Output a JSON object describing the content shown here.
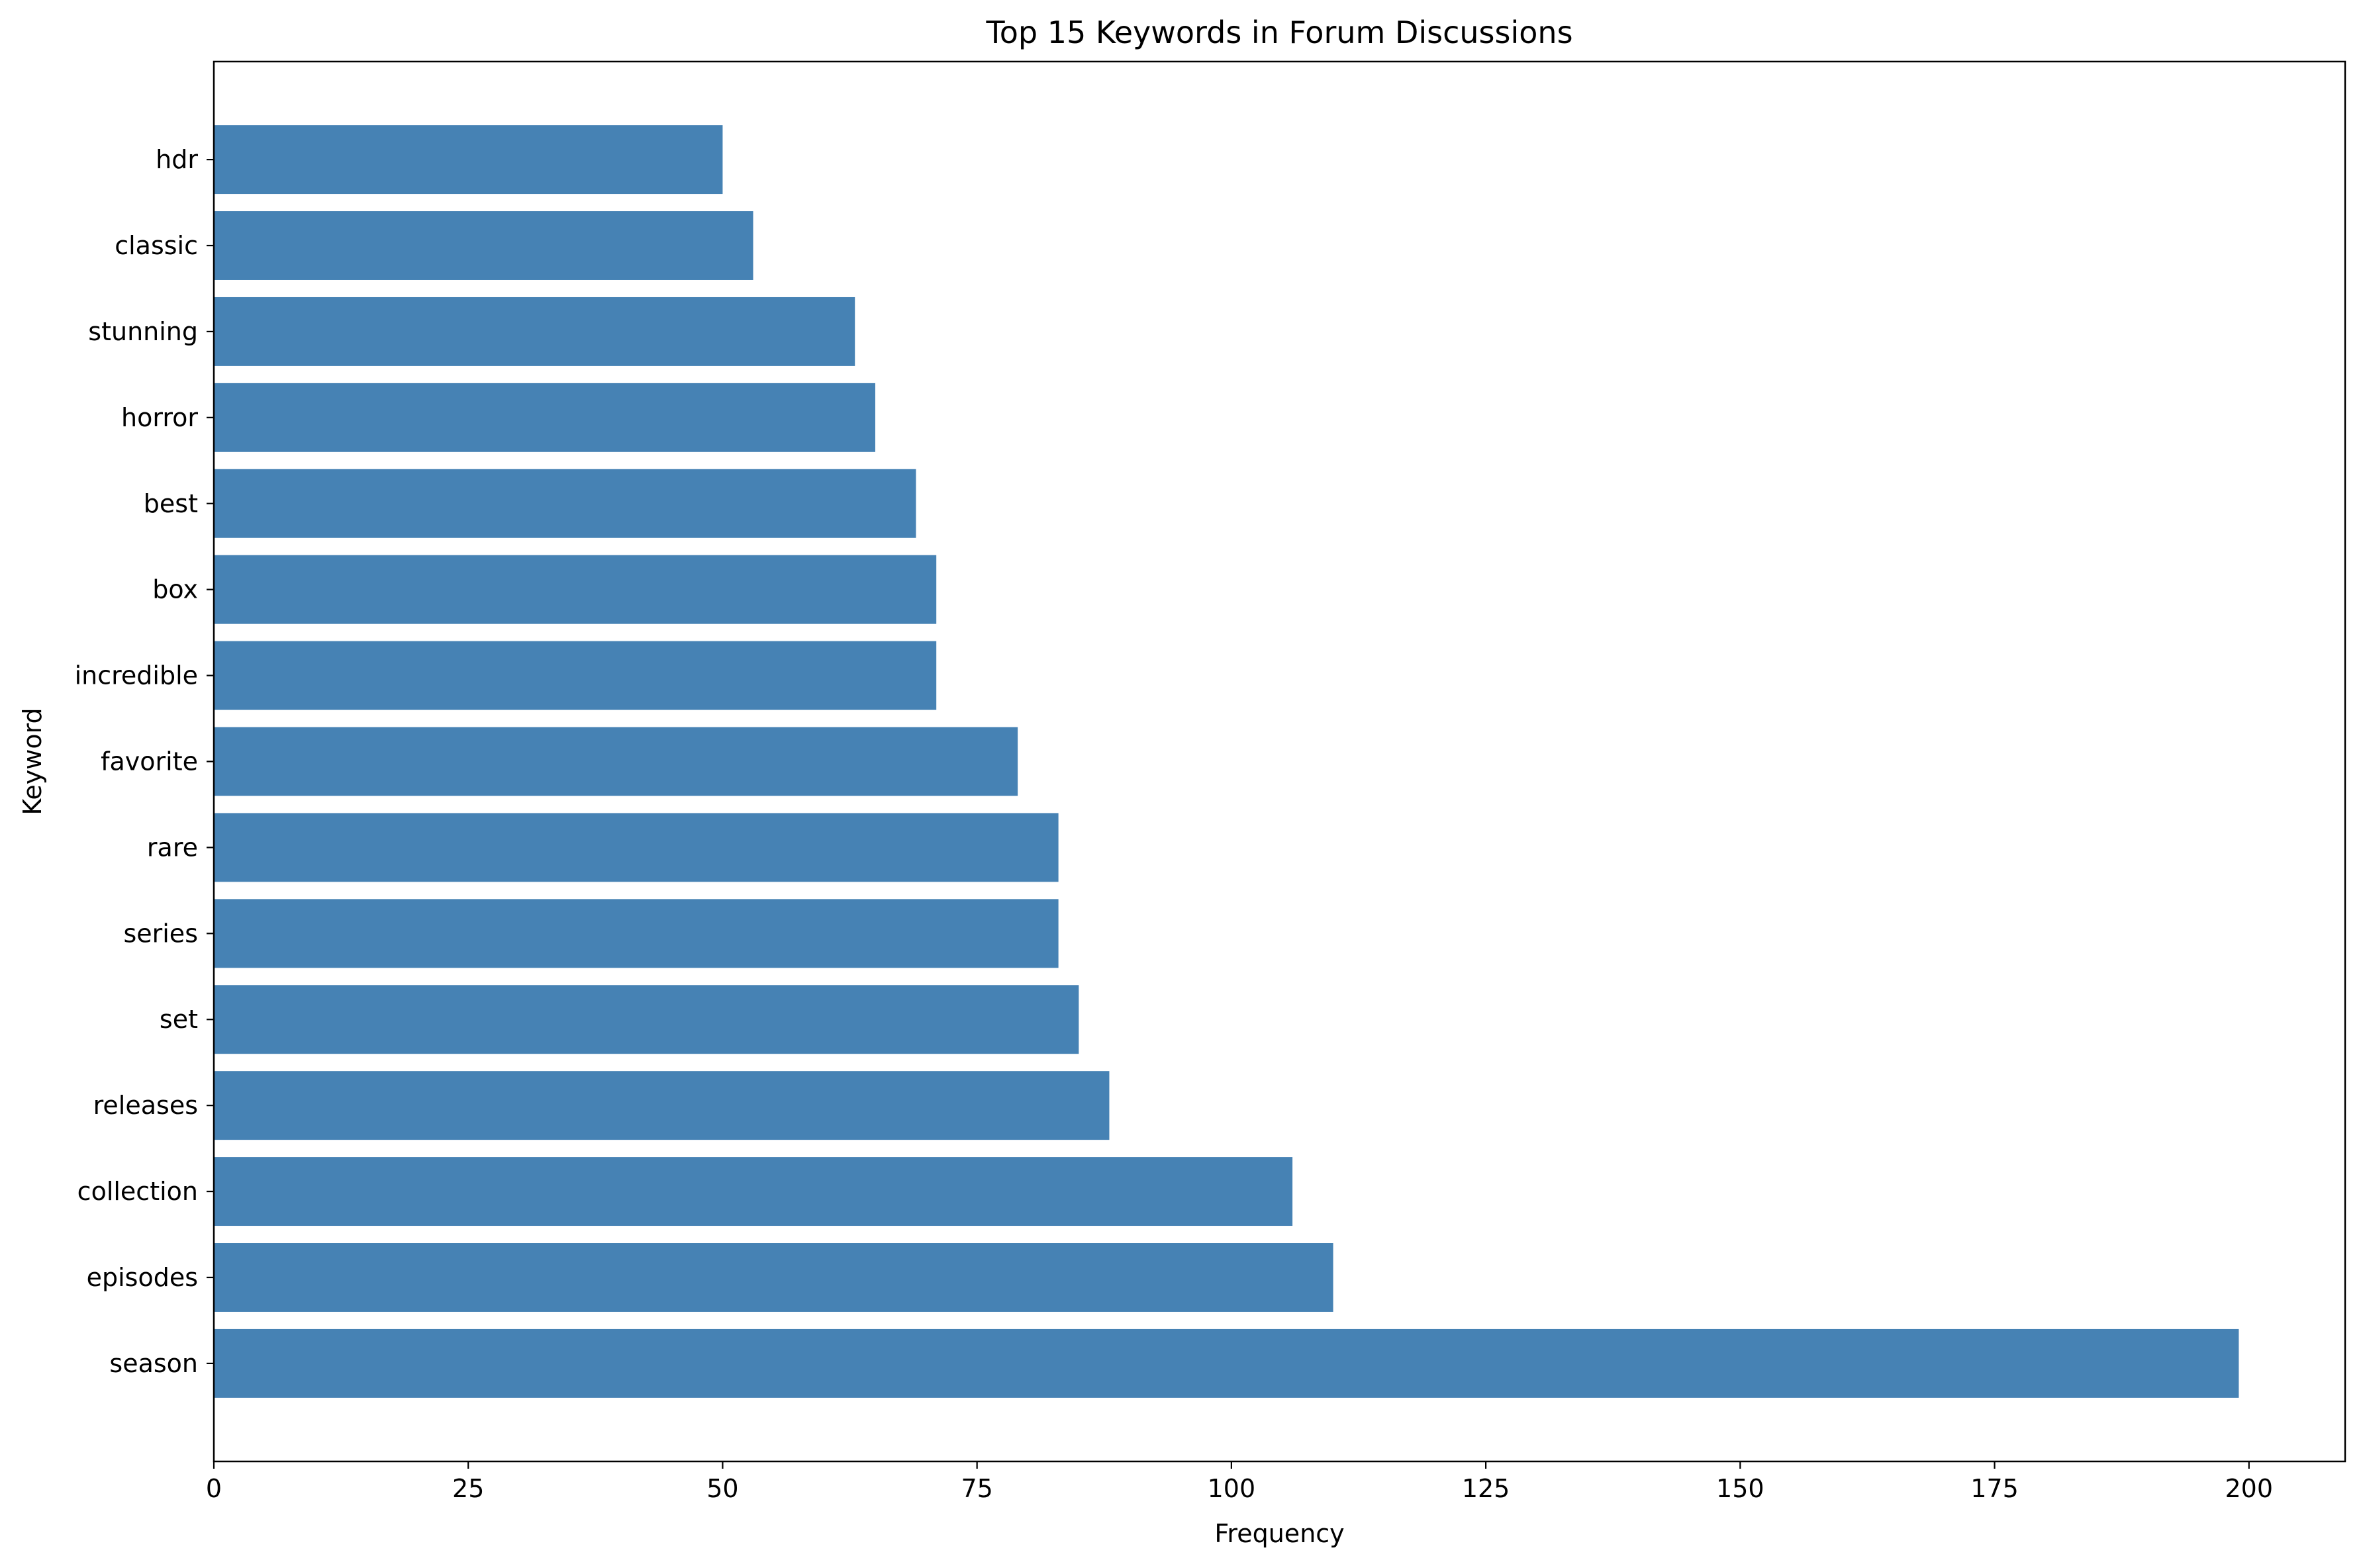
{
  "chart_data": {
    "type": "bar",
    "orientation": "horizontal",
    "title": "Top 15 Keywords in Forum Discussions",
    "xlabel": "Frequency",
    "ylabel": "Keyword",
    "categories": [
      "season",
      "episodes",
      "collection",
      "releases",
      "set",
      "series",
      "rare",
      "favorite",
      "incredible",
      "box",
      "best",
      "horror",
      "stunning",
      "classic",
      "hdr"
    ],
    "values": [
      199,
      110,
      106,
      88,
      85,
      83,
      83,
      79,
      71,
      71,
      69,
      65,
      63,
      53,
      50
    ],
    "xlim": [
      0,
      209.45
    ],
    "xticks": [
      0,
      25,
      50,
      75,
      100,
      125,
      150,
      175,
      200
    ],
    "bar_color": "#4682b4",
    "grid": false,
    "legend": "none"
  }
}
